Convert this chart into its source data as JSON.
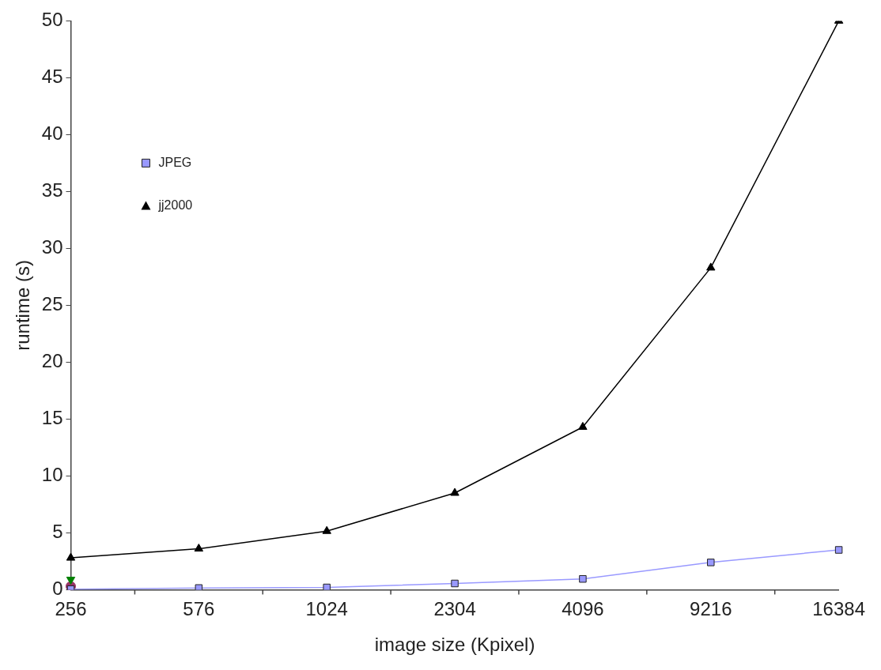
{
  "chart_data": {
    "type": "line",
    "xlabel": "image size (Kpixel)",
    "ylabel": "runtime (s)",
    "categories": [
      "256",
      "576",
      "1024",
      "2304",
      "4096",
      "9216",
      "16384"
    ],
    "ylim": [
      0,
      50
    ],
    "yticks": [
      0,
      5,
      10,
      15,
      20,
      25,
      30,
      35,
      40,
      45,
      50
    ],
    "grid": false,
    "legend": "top left",
    "line_style": "solid",
    "series": [
      {
        "name": "JPEG",
        "color": "#9999ff",
        "marker": "square",
        "values": [
          0.05,
          0.15,
          0.2,
          0.55,
          0.95,
          2.4,
          3.5
        ]
      },
      {
        "name": "jj2000",
        "color": "#000000",
        "marker": "triangle",
        "values": [
          2.8,
          3.6,
          5.15,
          8.5,
          14.3,
          28.3,
          50
        ]
      },
      {
        "color": "#008000",
        "marker": "triangle",
        "values": [
          0.9,
          null,
          null,
          null,
          null,
          null,
          null
        ]
      },
      {
        "color": "#993366",
        "marker": "circle",
        "values": [
          0.3,
          null,
          null,
          null,
          null,
          null,
          null
        ]
      }
    ]
  }
}
